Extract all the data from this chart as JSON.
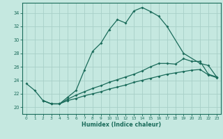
{
  "xlabel": "Humidex (Indice chaleur)",
  "xlim": [
    -0.5,
    23.5
  ],
  "ylim": [
    19.0,
    35.5
  ],
  "xticks": [
    0,
    1,
    2,
    3,
    4,
    5,
    6,
    7,
    8,
    9,
    10,
    11,
    12,
    13,
    14,
    15,
    16,
    17,
    18,
    19,
    20,
    21,
    22,
    23
  ],
  "yticks": [
    20,
    22,
    24,
    26,
    28,
    30,
    32,
    34
  ],
  "bg_color": "#c5e8e0",
  "grid_color": "#a8cfc8",
  "line_color": "#1a6b5a",
  "line1_x": [
    0,
    1,
    2,
    3,
    4,
    5,
    6,
    7,
    8,
    9,
    10,
    11,
    12,
    13,
    14,
    15,
    16,
    17,
    19,
    21,
    22,
    23
  ],
  "line1_y": [
    23.5,
    22.5,
    21.0,
    20.5,
    20.5,
    21.5,
    22.5,
    25.5,
    28.3,
    29.5,
    31.5,
    33.0,
    32.5,
    34.3,
    34.8,
    34.2,
    33.5,
    32.0,
    28.0,
    26.5,
    26.2,
    24.5
  ],
  "line2_x": [
    2,
    3,
    4,
    5,
    6,
    7,
    8,
    9,
    10,
    11,
    12,
    13,
    14,
    15,
    16,
    17,
    18,
    19,
    20,
    21,
    22,
    23
  ],
  "line2_y": [
    21.0,
    20.5,
    20.5,
    21.0,
    21.3,
    21.7,
    22.0,
    22.3,
    22.7,
    23.0,
    23.3,
    23.7,
    24.0,
    24.3,
    24.6,
    24.9,
    25.1,
    25.3,
    25.5,
    25.6,
    24.8,
    24.4
  ],
  "line3_x": [
    2,
    3,
    4,
    5,
    6,
    7,
    8,
    9,
    10,
    11,
    12,
    13,
    14,
    15,
    16,
    17,
    18,
    19,
    20,
    21,
    22,
    23
  ],
  "line3_y": [
    21.0,
    20.5,
    20.5,
    21.2,
    21.8,
    22.3,
    22.8,
    23.2,
    23.7,
    24.1,
    24.5,
    24.9,
    25.4,
    26.0,
    26.5,
    26.5,
    26.4,
    27.2,
    26.8,
    26.8,
    24.9,
    24.5
  ]
}
